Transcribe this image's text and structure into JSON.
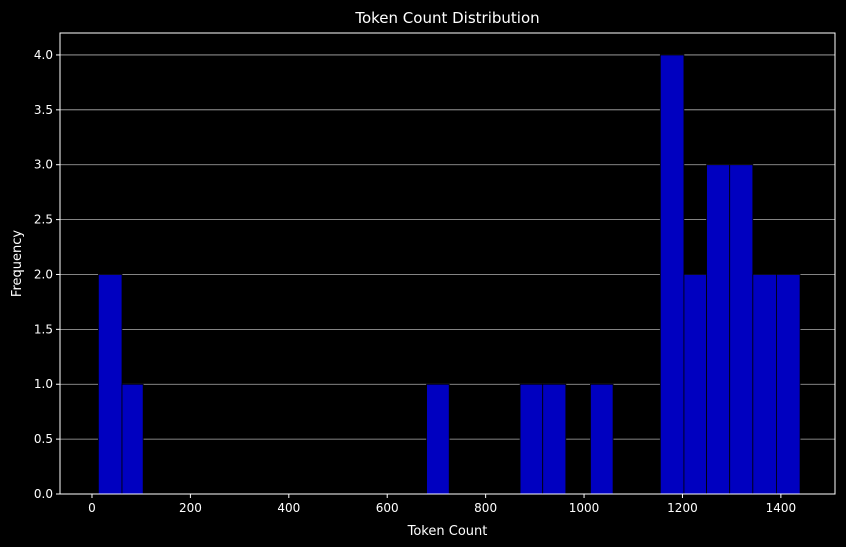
{
  "chart_data": {
    "type": "bar",
    "title": "Token Count Distribution",
    "xlabel": "Token Count",
    "ylabel": "Frequency",
    "xlim": [
      -65,
      1510
    ],
    "ylim": [
      0,
      4.2
    ],
    "xticks": [
      0,
      200,
      400,
      600,
      800,
      1000,
      1200,
      1400
    ],
    "yticks": [
      0.0,
      0.5,
      1.0,
      1.5,
      2.0,
      2.5,
      3.0,
      3.5,
      4.0
    ],
    "xtick_labels": [
      "0",
      "200",
      "400",
      "600",
      "800",
      "1000",
      "1200",
      "1400"
    ],
    "ytick_labels": [
      "0.0",
      "0.5",
      "1.0",
      "1.5",
      "2.0",
      "2.5",
      "3.0",
      "3.5",
      "4.0"
    ],
    "grid": "horizontal",
    "bar_color": "#0000c0",
    "bins": [
      {
        "start": 13,
        "end": 61,
        "value": 2
      },
      {
        "start": 61,
        "end": 104,
        "value": 1
      },
      {
        "start": 680,
        "end": 726,
        "value": 1
      },
      {
        "start": 870,
        "end": 916,
        "value": 1
      },
      {
        "start": 916,
        "end": 963,
        "value": 1
      },
      {
        "start": 1013,
        "end": 1059,
        "value": 1
      },
      {
        "start": 1155,
        "end": 1203,
        "value": 4
      },
      {
        "start": 1203,
        "end": 1249,
        "value": 2
      },
      {
        "start": 1249,
        "end": 1296,
        "value": 3
      },
      {
        "start": 1296,
        "end": 1343,
        "value": 3
      },
      {
        "start": 1343,
        "end": 1391,
        "value": 2
      },
      {
        "start": 1391,
        "end": 1439,
        "value": 2
      }
    ]
  }
}
